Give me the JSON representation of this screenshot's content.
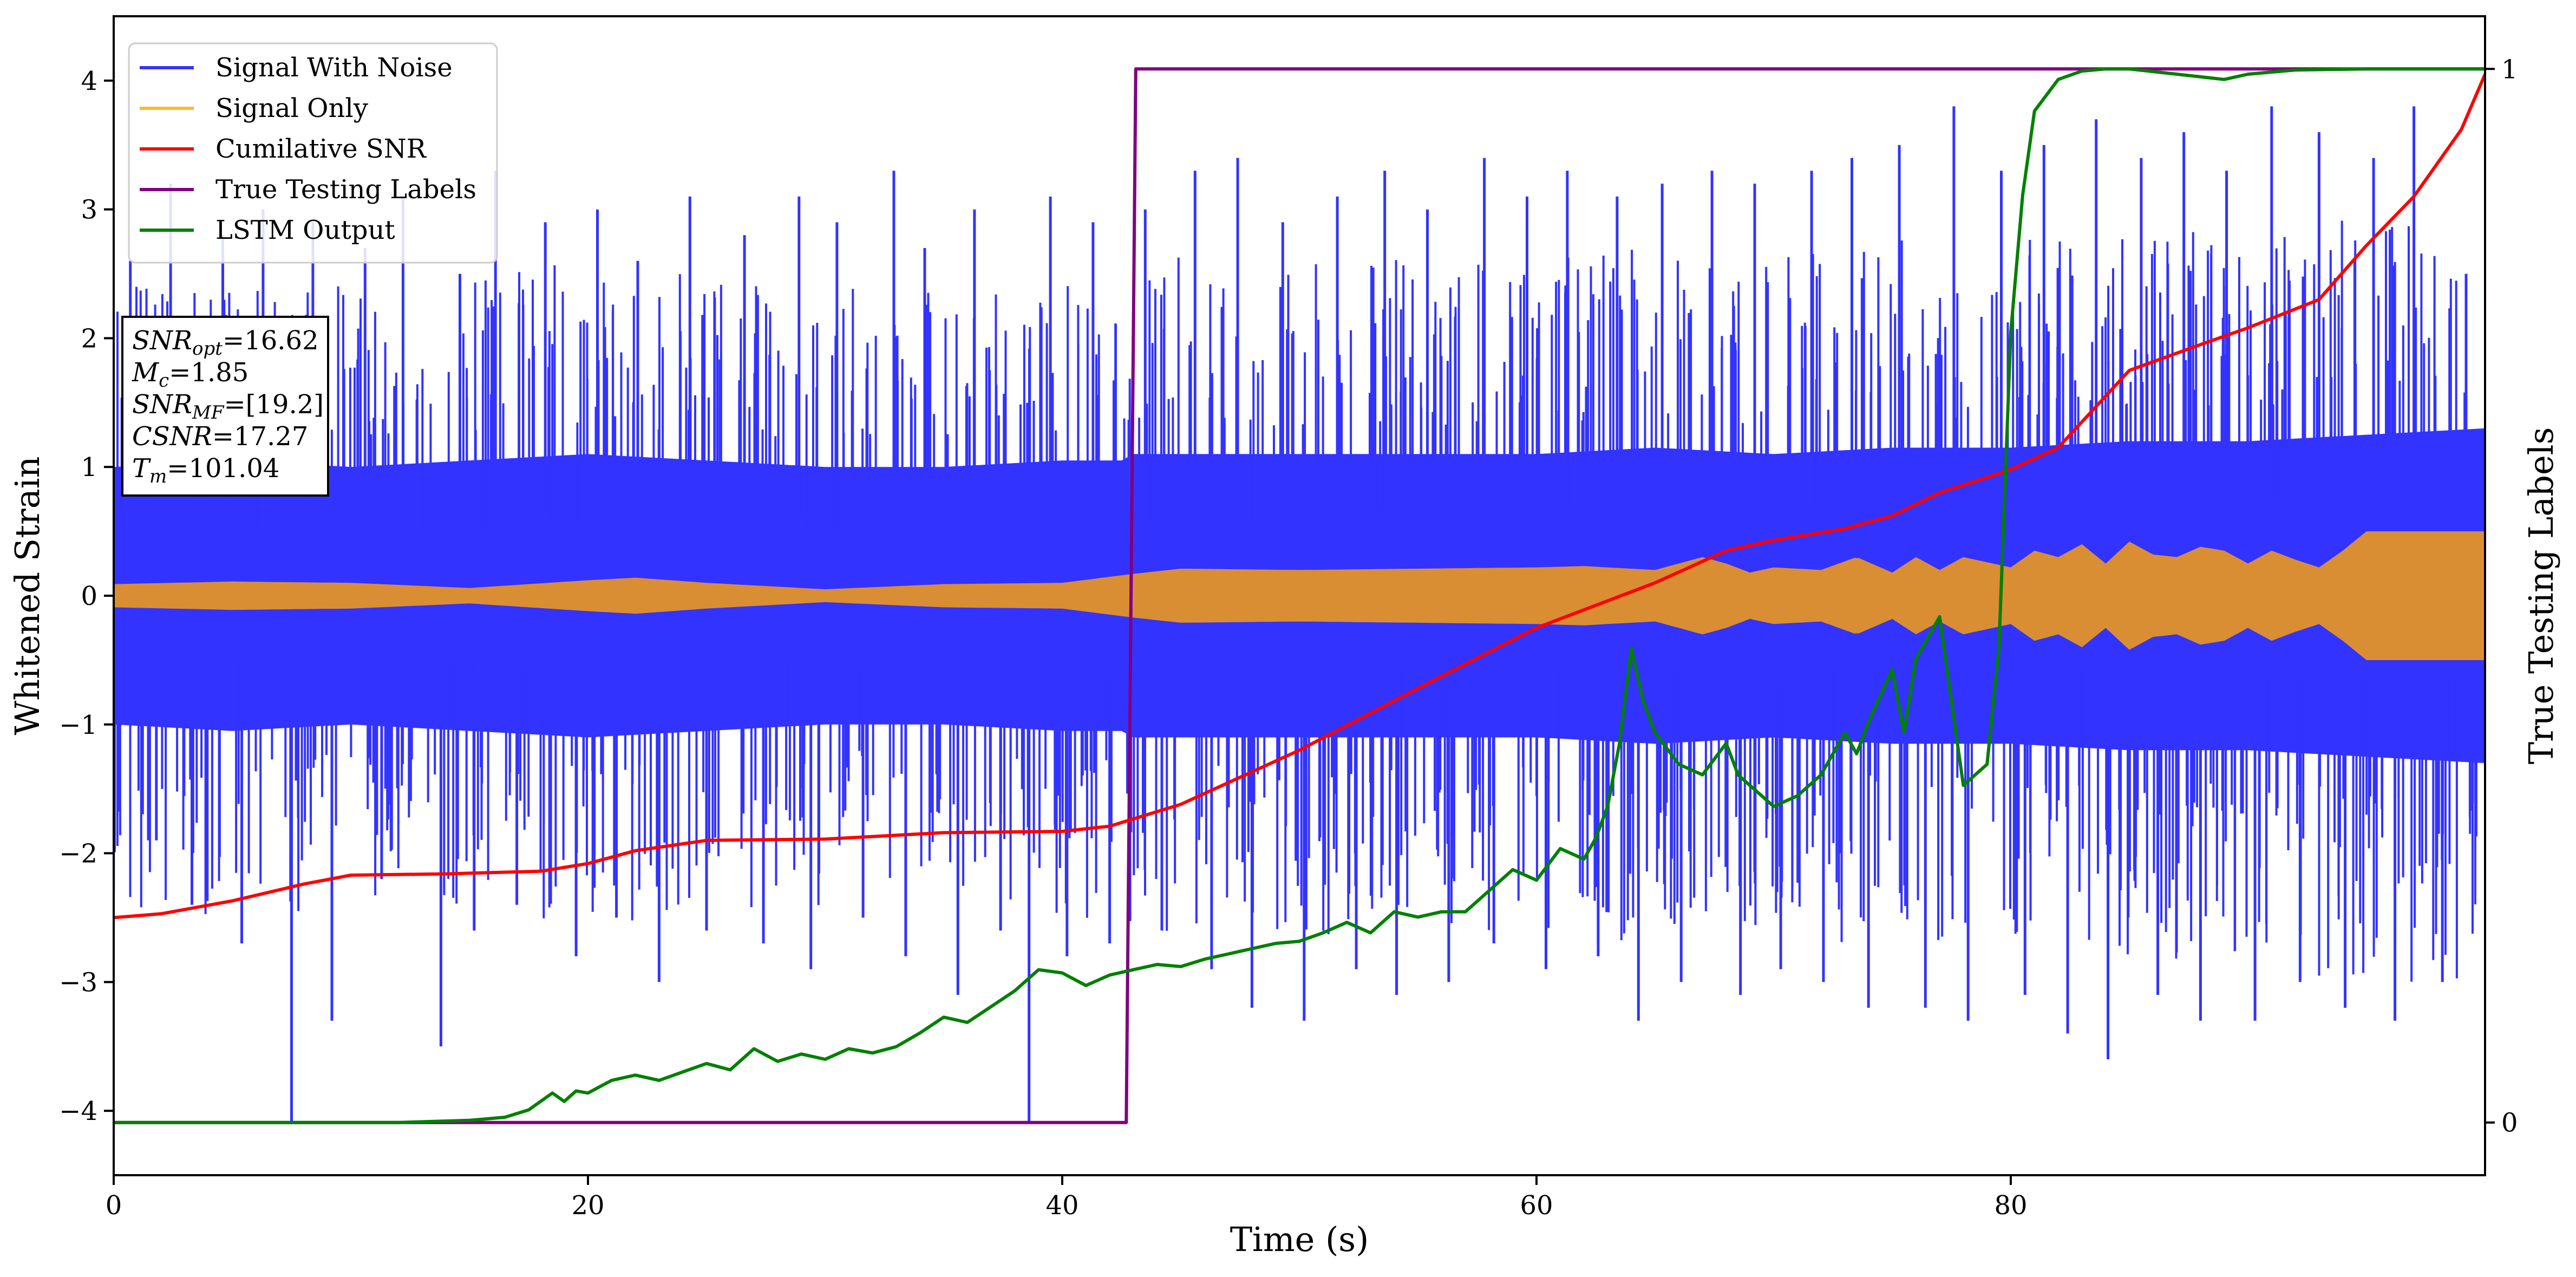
{
  "chart_data": {
    "type": "line",
    "xlabel": "Time (s)",
    "ylabel": "Whitened Strain",
    "ylabel_right": "True Testing Labels",
    "xlim": [
      0,
      100
    ],
    "ylim": [
      -4.5,
      4.5
    ],
    "ylim_right": [
      -0.05,
      1.05
    ],
    "x_ticks": [
      0,
      20,
      40,
      60,
      80
    ],
    "x_tick_labels": [
      "0",
      "20",
      "40",
      "60",
      "80"
    ],
    "y_ticks": [
      -4,
      -3,
      -2,
      -1,
      0,
      1,
      2,
      3,
      4
    ],
    "y_tick_labels": [
      "−4",
      "−3",
      "−2",
      "−1",
      "0",
      "1",
      "2",
      "3",
      "4"
    ],
    "y_right_ticks": [
      0,
      1
    ],
    "y_right_tick_labels": [
      "0",
      "1"
    ],
    "grid": false,
    "legend_position": "top-left",
    "legend": [
      {
        "label": "Signal With Noise",
        "color": "#3333ff"
      },
      {
        "label": "Signal Only",
        "color": "#ffb833"
      },
      {
        "label": "Cumilative SNR",
        "color": "#ff0000"
      },
      {
        "label": "True Testing Labels",
        "color": "#800080"
      },
      {
        "label": "LSTM Output",
        "color": "#008000"
      }
    ],
    "annotation": {
      "lines": [
        {
          "base": "SNR",
          "sub": "opt",
          "rest": "=16.62"
        },
        {
          "base": "M",
          "sub": "c",
          "rest": "=1.85"
        },
        {
          "base": "SNR",
          "sub": "MF",
          "rest": "=[19.2]"
        },
        {
          "base": "CSNR",
          "sub": "",
          "rest": "=17.27"
        },
        {
          "base": "T",
          "sub": "m",
          "rest": "=101.04"
        }
      ]
    },
    "series": [
      {
        "name": "Signal With Noise",
        "axis": "left",
        "color": "#3333ff",
        "band_x": [
          0,
          5,
          10,
          15,
          20,
          25,
          30,
          35,
          40,
          42.5,
          43,
          50,
          60,
          65,
          70,
          75,
          80,
          85,
          90,
          95,
          100
        ],
        "band_upper": [
          1.0,
          1.05,
          1.0,
          1.05,
          1.1,
          1.05,
          1.0,
          1.0,
          1.05,
          1.05,
          1.1,
          1.1,
          1.1,
          1.15,
          1.1,
          1.15,
          1.15,
          1.2,
          1.2,
          1.25,
          1.3
        ],
        "band_lower": [
          -1.0,
          -1.05,
          -1.0,
          -1.05,
          -1.1,
          -1.05,
          -1.0,
          -1.0,
          -1.05,
          -1.05,
          -1.1,
          -1.1,
          -1.1,
          -1.15,
          -1.1,
          -1.15,
          -1.15,
          -1.2,
          -1.2,
          -1.25,
          -1.3
        ],
        "spikes": [
          [
            0.7,
            2.6
          ],
          [
            1.8,
            -1.9
          ],
          [
            2.4,
            3.2
          ],
          [
            3.3,
            -2.4
          ],
          [
            4.6,
            2.8
          ],
          [
            5.4,
            -2.7
          ],
          [
            6.3,
            3.0
          ],
          [
            7.5,
            -4.1
          ],
          [
            8.4,
            2.9
          ],
          [
            9.2,
            -3.3
          ],
          [
            10.6,
            2.7
          ],
          [
            11.3,
            -2.2
          ],
          [
            12.2,
            3.1
          ],
          [
            13.8,
            -3.5
          ],
          [
            14.6,
            2.5
          ],
          [
            15.2,
            -2.6
          ],
          [
            16.1,
            3.3
          ],
          [
            17.0,
            -2.4
          ],
          [
            18.2,
            2.9
          ],
          [
            19.5,
            -2.8
          ],
          [
            20.4,
            3.0
          ],
          [
            21.2,
            -2.5
          ],
          [
            22.1,
            2.6
          ],
          [
            23.0,
            -3.0
          ],
          [
            24.3,
            3.1
          ],
          [
            25.0,
            -2.6
          ],
          [
            26.6,
            2.8
          ],
          [
            27.4,
            -2.7
          ],
          [
            28.9,
            3.1
          ],
          [
            29.4,
            -2.9
          ],
          [
            30.5,
            2.9
          ],
          [
            31.6,
            -2.5
          ],
          [
            32.9,
            3.3
          ],
          [
            33.4,
            -2.8
          ],
          [
            34.2,
            2.7
          ],
          [
            35.6,
            -3.1
          ],
          [
            36.3,
            3.0
          ],
          [
            37.4,
            -2.6
          ],
          [
            38.6,
            -4.1
          ],
          [
            39.5,
            3.1
          ],
          [
            40.2,
            -2.8
          ],
          [
            41.3,
            2.9
          ],
          [
            42.0,
            -2.7
          ],
          [
            43.5,
            3.0
          ],
          [
            44.2,
            -2.6
          ],
          [
            45.6,
            3.3
          ],
          [
            46.3,
            -2.9
          ],
          [
            47.4,
            3.4
          ],
          [
            48.0,
            -3.2
          ],
          [
            49.3,
            2.9
          ],
          [
            50.2,
            -3.3
          ],
          [
            51.6,
            3.1
          ],
          [
            52.4,
            -2.9
          ],
          [
            53.6,
            3.3
          ],
          [
            54.1,
            -3.1
          ],
          [
            55.4,
            3.0
          ],
          [
            56.3,
            -3.0
          ],
          [
            57.8,
            3.4
          ],
          [
            58.2,
            -2.7
          ],
          [
            59.6,
            3.1
          ],
          [
            60.4,
            -2.9
          ],
          [
            61.3,
            3.3
          ],
          [
            62.6,
            -2.8
          ],
          [
            63.4,
            3.1
          ],
          [
            64.3,
            -3.3
          ],
          [
            65.3,
            3.2
          ],
          [
            66.1,
            -3.0
          ],
          [
            67.4,
            3.3
          ],
          [
            68.6,
            -3.1
          ],
          [
            69.2,
            3.2
          ],
          [
            70.3,
            -2.9
          ],
          [
            71.6,
            3.3
          ],
          [
            72.1,
            -3.0
          ],
          [
            73.3,
            3.4
          ],
          [
            74.0,
            -3.2
          ],
          [
            75.3,
            3.5
          ],
          [
            76.4,
            -3.2
          ],
          [
            77.6,
            3.8
          ],
          [
            78.2,
            -3.3
          ],
          [
            79.6,
            3.3
          ],
          [
            80.6,
            -3.1
          ],
          [
            81.4,
            3.5
          ],
          [
            82.4,
            -3.4
          ],
          [
            83.6,
            3.7
          ],
          [
            84.1,
            -3.6
          ],
          [
            85.5,
            3.4
          ],
          [
            86.2,
            -3.1
          ],
          [
            87.3,
            3.6
          ],
          [
            88.0,
            -3.3
          ],
          [
            89.1,
            3.3
          ],
          [
            90.3,
            -3.3
          ],
          [
            91.0,
            3.8
          ],
          [
            92.2,
            -3.0
          ],
          [
            93.0,
            3.6
          ],
          [
            94.1,
            -3.2
          ],
          [
            95.3,
            3.4
          ],
          [
            96.2,
            -3.3
          ],
          [
            97.0,
            3.8
          ],
          [
            98.2,
            -3.0
          ],
          [
            99.2,
            2.5
          ]
        ]
      },
      {
        "name": "Signal Only",
        "axis": "left",
        "color": "#ffb833",
        "x": [
          0,
          5,
          10,
          15,
          20,
          22,
          25,
          30,
          35,
          40,
          43,
          45,
          50,
          55,
          60,
          62,
          65,
          67,
          68,
          69,
          70,
          72,
          73.5,
          75,
          76,
          77,
          78,
          80,
          81,
          82,
          83,
          84,
          85,
          86,
          87,
          88,
          89,
          90,
          91,
          92,
          93,
          94,
          95,
          97,
          100
        ],
        "envelope": [
          0.09,
          0.11,
          0.1,
          0.06,
          0.12,
          0.14,
          0.1,
          0.05,
          0.09,
          0.1,
          0.17,
          0.21,
          0.2,
          0.21,
          0.22,
          0.23,
          0.2,
          0.3,
          0.25,
          0.18,
          0.22,
          0.2,
          0.3,
          0.18,
          0.3,
          0.2,
          0.3,
          0.22,
          0.35,
          0.3,
          0.4,
          0.25,
          0.42,
          0.32,
          0.3,
          0.38,
          0.35,
          0.25,
          0.35,
          0.28,
          0.22,
          0.35,
          0.5,
          0.5,
          0.5
        ]
      },
      {
        "name": "Cumilative SNR",
        "axis": "left",
        "color": "#ff0000",
        "x": [
          0,
          2,
          5,
          8,
          10,
          14,
          18,
          20,
          22,
          25,
          30,
          35,
          40,
          42,
          45,
          50,
          55,
          60,
          65,
          68,
          70,
          73,
          75,
          77,
          80,
          82,
          85,
          88,
          90,
          93,
          95,
          97,
          99,
          100
        ],
        "y": [
          -2.5,
          -2.47,
          -2.37,
          -2.24,
          -2.17,
          -2.16,
          -2.14,
          -2.08,
          -1.98,
          -1.9,
          -1.89,
          -1.84,
          -1.83,
          -1.79,
          -1.62,
          -1.2,
          -0.72,
          -0.25,
          0.1,
          0.35,
          0.43,
          0.52,
          0.62,
          0.8,
          0.98,
          1.15,
          1.75,
          1.95,
          2.08,
          2.3,
          2.72,
          3.1,
          3.62,
          4.05
        ]
      },
      {
        "name": "True Testing Labels",
        "axis": "right",
        "color": "#800080",
        "x": [
          0,
          42.7,
          43.1,
          100
        ],
        "y": [
          0,
          0,
          1,
          1
        ]
      },
      {
        "name": "LSTM Output",
        "axis": "right",
        "color": "#008000",
        "x": [
          0,
          12,
          15,
          16.5,
          17.5,
          18,
          18.5,
          19,
          19.5,
          20,
          21,
          22,
          23,
          24,
          25,
          26,
          27,
          28,
          29,
          30,
          31,
          32,
          33,
          34,
          35,
          36,
          37,
          38,
          39,
          40,
          41,
          42,
          43,
          44,
          45,
          46,
          47,
          48,
          49,
          50,
          51,
          52,
          53,
          54,
          55,
          56,
          57,
          58,
          59,
          60,
          61,
          62,
          62.5,
          63,
          63.5,
          64,
          64.5,
          65,
          66,
          67,
          68,
          68.5,
          69,
          70,
          71,
          72,
          73,
          73.5,
          74,
          75,
          75.5,
          76,
          77,
          78,
          79,
          79.5,
          80,
          80.5,
          81,
          82,
          83,
          84,
          85,
          87,
          89,
          90,
          91,
          92,
          95,
          100
        ],
        "y": [
          0,
          0,
          0.002,
          0.005,
          0.012,
          0.02,
          0.028,
          0.02,
          0.03,
          0.028,
          0.04,
          0.045,
          0.04,
          0.048,
          0.056,
          0.05,
          0.07,
          0.058,
          0.065,
          0.06,
          0.07,
          0.066,
          0.072,
          0.085,
          0.1,
          0.095,
          0.11,
          0.125,
          0.145,
          0.142,
          0.13,
          0.14,
          0.145,
          0.15,
          0.148,
          0.155,
          0.16,
          0.165,
          0.17,
          0.172,
          0.18,
          0.19,
          0.18,
          0.2,
          0.195,
          0.2,
          0.2,
          0.22,
          0.24,
          0.23,
          0.26,
          0.25,
          0.27,
          0.3,
          0.36,
          0.45,
          0.4,
          0.37,
          0.34,
          0.33,
          0.36,
          0.33,
          0.32,
          0.3,
          0.31,
          0.33,
          0.37,
          0.35,
          0.38,
          0.43,
          0.37,
          0.44,
          0.48,
          0.32,
          0.34,
          0.45,
          0.75,
          0.88,
          0.96,
          0.99,
          0.998,
          1.0,
          1.0,
          0.995,
          0.99,
          0.995,
          0.997,
          0.999,
          1.0,
          1.0
        ]
      }
    ]
  }
}
